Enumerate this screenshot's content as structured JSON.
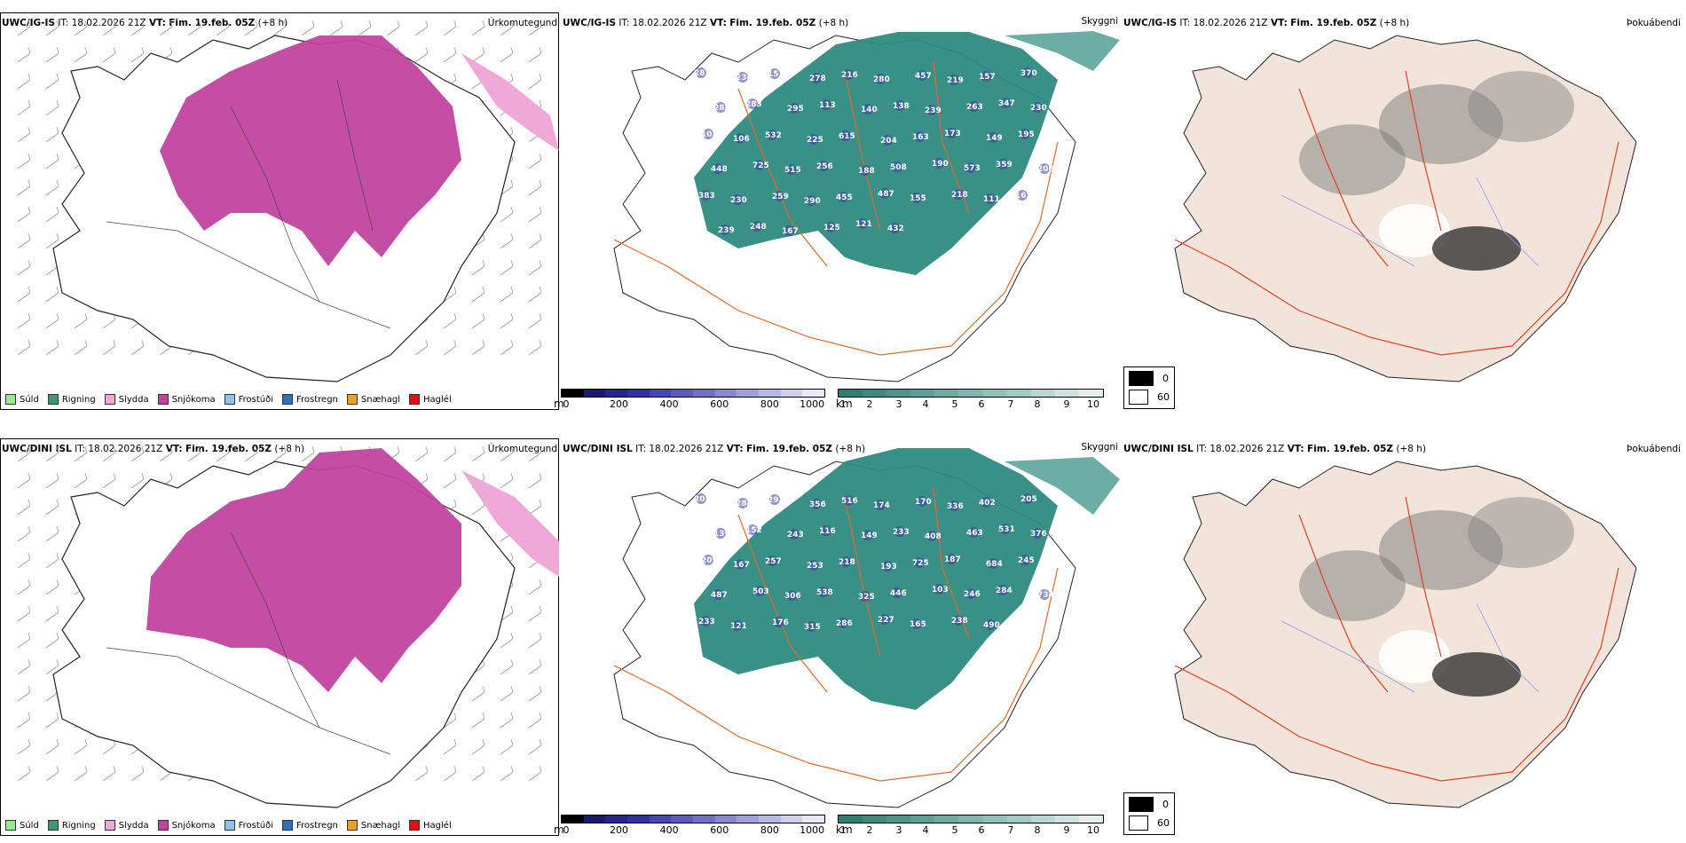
{
  "rows": [
    {
      "model": "UWC/IG-IS",
      "it": "IT: 18.02.2026 21Z",
      "vt_label": "VT:",
      "vt": "Fim. 19.feb. 05Z",
      "lead": "(+8 h)",
      "labels": [
        "287",
        "234",
        "153",
        "278",
        "216",
        "280",
        "457",
        "219",
        "157",
        "370",
        "288",
        "283",
        "295",
        "113",
        "140",
        "138",
        "239",
        "263",
        "347",
        "230",
        "102",
        "106",
        "532",
        "225",
        "615",
        "204",
        "163",
        "173",
        "149",
        "195",
        "448",
        "725",
        "515",
        "256",
        "188",
        "508",
        "190",
        "573",
        "359",
        "206",
        "383",
        "230",
        "259",
        "290",
        "455",
        "487",
        "155",
        "218",
        "111",
        "162",
        "239",
        "248",
        "167",
        "125",
        "121",
        "432"
      ]
    },
    {
      "model": "UWC/DINI ISL",
      "it": "IT: 18.02.2026 21Z",
      "vt_label": "VT:",
      "vt": "Fim. 19.feb. 05Z",
      "lead": "(+8 h)",
      "labels": [
        "201",
        "284",
        "293",
        "356",
        "516",
        "174",
        "170",
        "336",
        "402",
        "205",
        "139",
        "152",
        "243",
        "116",
        "149",
        "233",
        "408",
        "463",
        "531",
        "376",
        "209",
        "167",
        "257",
        "253",
        "218",
        "193",
        "725",
        "187",
        "684",
        "245",
        "487",
        "503",
        "306",
        "538",
        "325",
        "446",
        "103",
        "246",
        "284",
        "734",
        "233",
        "121",
        "176",
        "315",
        "286",
        "227",
        "165",
        "238",
        "490"
      ]
    }
  ],
  "panel_titles": {
    "precip": "Úrkomutegund",
    "visibility": "Skyggni",
    "fog": "Þokuábendi"
  },
  "precip_legend": [
    {
      "name": "Súld",
      "color": "#90ee90"
    },
    {
      "name": "Rigning",
      "color": "#3c9a6c"
    },
    {
      "name": "Slydda",
      "color": "#f0a8d8"
    },
    {
      "name": "Snjókoma",
      "color": "#c0449f"
    },
    {
      "name": "Frostúði",
      "color": "#8ec3f0"
    },
    {
      "name": "Frostregn",
      "color": "#2f6fbf"
    },
    {
      "name": "Snæhagl",
      "color": "#f0a020"
    },
    {
      "name": "Haglél",
      "color": "#e01010"
    }
  ],
  "m_scale": {
    "unit": "m",
    "ticks": [
      "0",
      "200",
      "400",
      "600",
      "800",
      "1000"
    ],
    "colors": [
      "#000000",
      "#1a1a70",
      "#252590",
      "#3030a8",
      "#4545b5",
      "#5a5ac0",
      "#7070c8",
      "#8888d0",
      "#a0a0da",
      "#b8b8e2",
      "#d0d0ec",
      "#e8e8f6"
    ]
  },
  "km_scale": {
    "unit": "km",
    "ticks": [
      "1",
      "2",
      "3",
      "4",
      "5",
      "6",
      "7",
      "8",
      "9",
      "10"
    ],
    "colors": [
      "#2e7f74",
      "#3d8a80",
      "#4c958b",
      "#5ba096",
      "#6cab a2",
      "#7eb6ae",
      "#90c1ba",
      "#a4ccc6",
      "#b9d8d3",
      "#cfe4e0",
      "#e6f1ef"
    ]
  },
  "fog_legend": [
    {
      "label": "0",
      "color": "#000000"
    },
    {
      "label": "60",
      "color": "#ffffff"
    }
  ],
  "colors": {
    "snow": "#c0449f",
    "sleet": "#f0a8d8",
    "vis": "#2e8a80",
    "land": "#f2e4da",
    "road": "#e06a2a"
  }
}
